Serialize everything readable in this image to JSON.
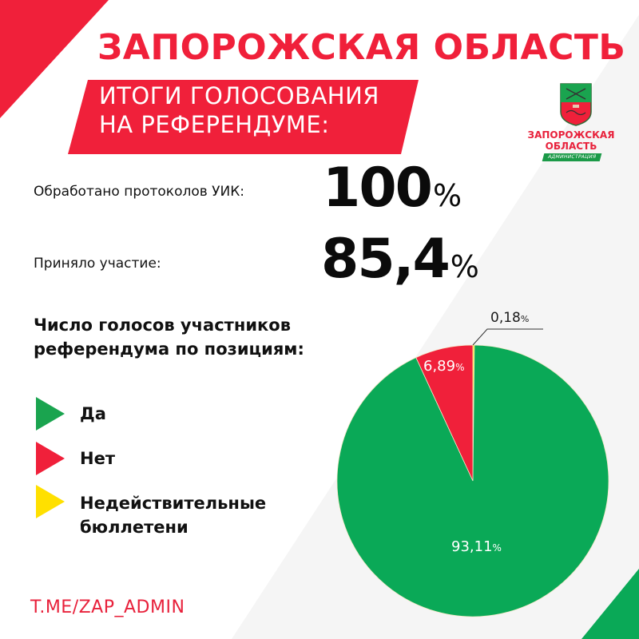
{
  "header": {
    "title": "ЗАПОРОЖСКАЯ ОБЛАСТЬ",
    "banner_line1": "ИТОГИ ГОЛОСОВАНИЯ",
    "banner_line2": "НА  РЕФЕРЕНДУМЕ:"
  },
  "logo": {
    "name_line1": "ЗАПОРОЖСКАЯ",
    "name_line2": "ОБЛАСТЬ",
    "ribbon": "АДМИНИСТРАЦИЯ"
  },
  "stats": [
    {
      "label": "Обработано протоколов УИК:",
      "value": "100",
      "unit": "%"
    },
    {
      "label": "Приняло участие:",
      "value": "85,4",
      "unit": "%"
    }
  ],
  "section": {
    "title_line1": "Число голосов участников",
    "title_line2": "референдума по позициям:"
  },
  "legend": [
    {
      "label": "Да",
      "color": "#1aa44f"
    },
    {
      "label": "Нет",
      "color": "#f0203a"
    },
    {
      "label_line1": "Недействительные",
      "label_line2": "бюллетени",
      "color": "#ffe000"
    }
  ],
  "footer": {
    "link": "T.ME/ZAP_ADMIN"
  },
  "colors": {
    "brand_red": "#f0203a",
    "green": "#0aa957",
    "yellow": "#ffe000",
    "bg_band": "#f5f5f5"
  },
  "chart_data": {
    "type": "pie",
    "title": "Число голосов участников референдума по позициям:",
    "categories": [
      "Да",
      "Нет",
      "Недействительные бюллетени"
    ],
    "values": [
      93.11,
      6.89,
      0.18
    ],
    "labels": [
      "93,11",
      "6,89",
      "0,18"
    ],
    "unit": "%",
    "colors": [
      "#0aa957",
      "#f0203a",
      "#ffe000"
    ],
    "legend_position": "left"
  }
}
